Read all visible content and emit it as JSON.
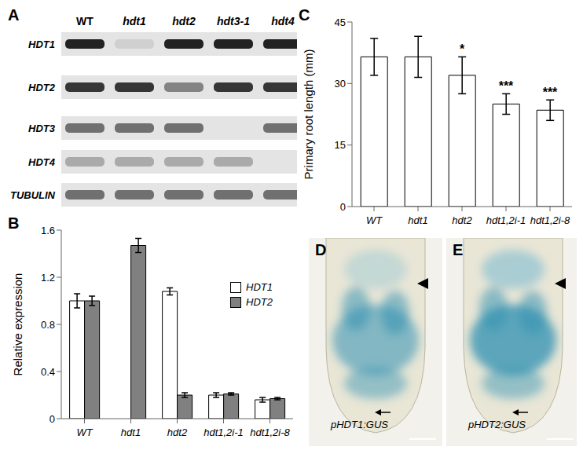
{
  "gel": {
    "panel": "A",
    "columns": [
      "WT",
      "hdt1",
      "hdt2",
      "hdt3-1",
      "hdt4"
    ],
    "rows": [
      {
        "label": "HDT1",
        "bands": [
          1,
          0.1,
          1,
          1,
          1
        ]
      },
      {
        "label": "HDT2",
        "bands": [
          0.9,
          0.9,
          0.5,
          0.9,
          0.9
        ]
      },
      {
        "label": "HDT3",
        "bands": [
          0.6,
          0.6,
          0.6,
          0,
          0.6
        ]
      },
      {
        "label": "HDT4",
        "bands": [
          0.3,
          0.3,
          0.3,
          0.3,
          0
        ]
      },
      {
        "label": "TUBULIN",
        "bands": [
          0.6,
          0.6,
          0.6,
          0.6,
          0.6
        ]
      }
    ]
  },
  "chart_data": [
    {
      "panel": "B",
      "type": "bar",
      "categories": [
        "WT",
        "hdt1",
        "hdt2",
        "hdt1,2i-1",
        "hdt1,2i-8"
      ],
      "ylabel": "Relative expression",
      "ylim": [
        0,
        1.6
      ],
      "yticks": [
        0,
        0.4,
        0.8,
        1.2,
        1.6
      ],
      "legend": "right",
      "series": [
        {
          "name": "HDT1",
          "color": "#ffffff",
          "values": [
            1.0,
            null,
            1.08,
            0.2,
            0.16
          ],
          "errors": [
            0.06,
            null,
            0.03,
            0.02,
            0.02
          ]
        },
        {
          "name": "HDT2",
          "color": "#808080",
          "values": [
            1.0,
            1.47,
            0.2,
            0.21,
            0.17
          ],
          "errors": [
            0.04,
            0.06,
            0.02,
            0.01,
            0.01
          ]
        }
      ]
    },
    {
      "panel": "C",
      "type": "bar",
      "categories": [
        "WT",
        "hdt1",
        "hdt2",
        "hdt1,2i-1",
        "hdt1,2i-8"
      ],
      "ylabel": "Primary root length (mm)",
      "ylim": [
        0,
        45
      ],
      "yticks": [
        0,
        15,
        30,
        45
      ],
      "color": "#ffffff",
      "values": [
        36.5,
        36.5,
        32,
        25,
        23.5
      ],
      "errors": [
        4.5,
        5,
        4.5,
        2.5,
        2.5
      ],
      "annotations": [
        null,
        null,
        "*",
        "***",
        "***"
      ]
    }
  ],
  "images": [
    {
      "panel": "D",
      "label": "pHDT1:GUS"
    },
    {
      "panel": "E",
      "label": "pHDT2:GUS"
    }
  ]
}
